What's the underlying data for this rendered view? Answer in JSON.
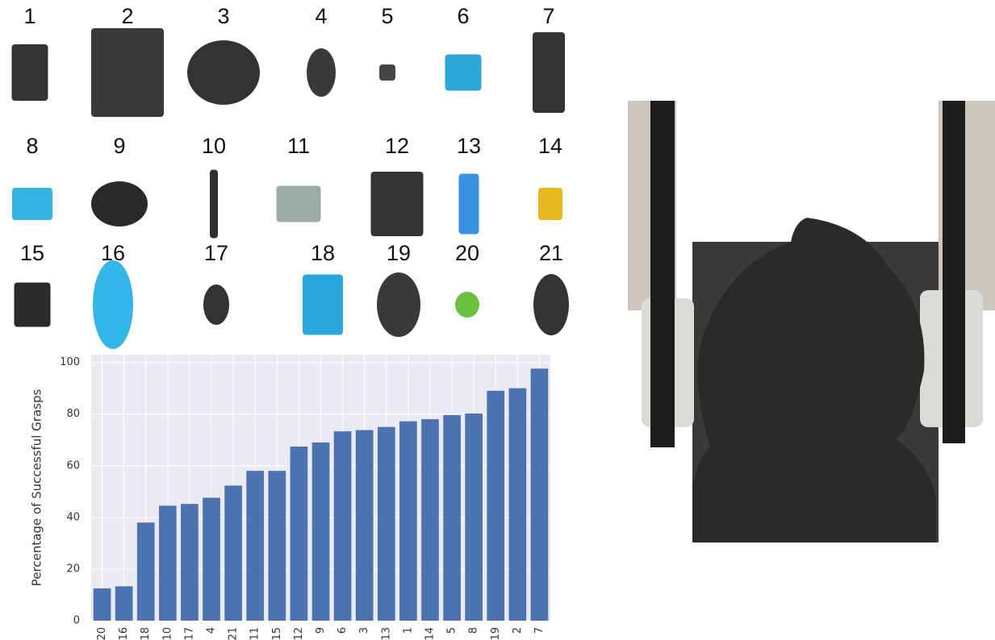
{
  "objects": [
    "1",
    "2",
    "3",
    "4",
    "5",
    "6",
    "7",
    "8",
    "9",
    "10",
    "11",
    "12",
    "13",
    "14",
    "15",
    "16",
    "17",
    "18",
    "19",
    "20",
    "21"
  ],
  "chart_data": {
    "type": "bar",
    "y_label": "Percentage of Successful Grasps",
    "categories": [
      "20",
      "16",
      "18",
      "10",
      "17",
      "4",
      "21",
      "11",
      "15",
      "12",
      "9",
      "6",
      "3",
      "13",
      "1",
      "14",
      "5",
      "8",
      "19",
      "2",
      "7"
    ],
    "values": [
      12.5,
      13.3,
      38,
      44.5,
      45.2,
      47.6,
      52.3,
      58,
      58,
      67.4,
      69,
      73.3,
      73.8,
      75,
      77.2,
      78,
      79.6,
      80.2,
      89,
      90,
      97.6
    ],
    "color": "#4c72b0",
    "ylim": [
      0,
      103
    ],
    "yticks": [
      0,
      20,
      40,
      60,
      80,
      100
    ],
    "grid": true
  }
}
